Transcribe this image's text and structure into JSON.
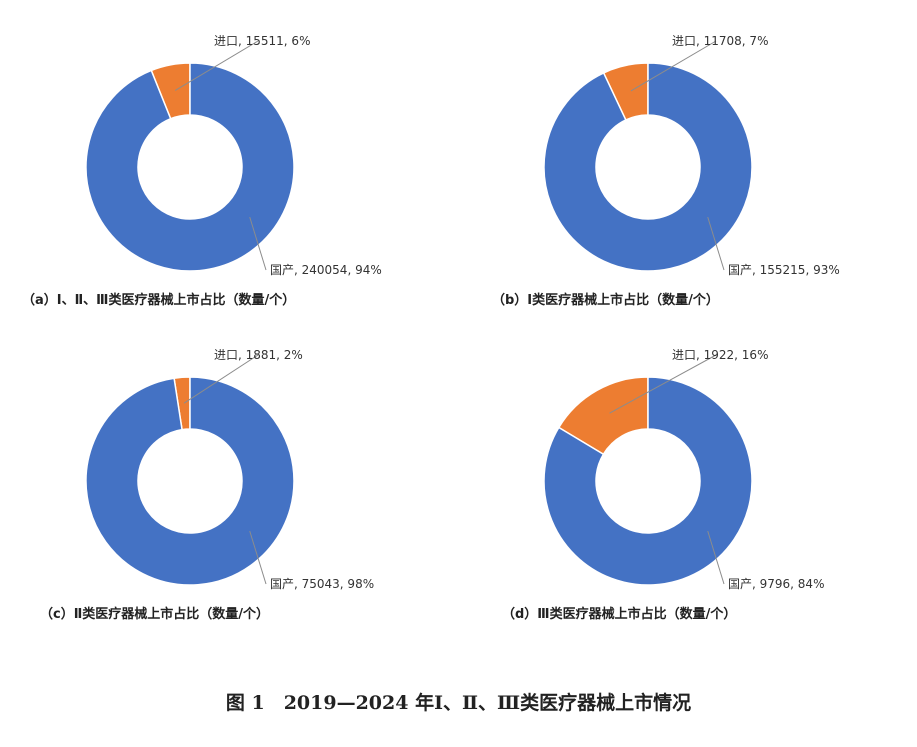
{
  "colors": {
    "domestic": "#4472c4",
    "imported": "#ed7d31",
    "leader": "#8c8c8c"
  },
  "figure_title": "图 1　2019—2024 年Ⅰ、Ⅱ、Ⅲ类医疗器械上市情况",
  "chart_data": [
    {
      "type": "pie",
      "variant": "donut",
      "title": "（a）Ⅰ、Ⅱ、Ⅲ类医疗器械上市占比（数量/个）",
      "slices": [
        {
          "name": "进口",
          "value": 15511,
          "percent": 6,
          "label": "进口, 15511, 6%"
        },
        {
          "name": "国产",
          "value": 240054,
          "percent": 94,
          "label": "国产, 240054, 94%"
        }
      ]
    },
    {
      "type": "pie",
      "variant": "donut",
      "title": "（b）Ⅰ类医疗器械上市占比（数量/个）",
      "slices": [
        {
          "name": "进口",
          "value": 11708,
          "percent": 7,
          "label": "进口, 11708, 7%"
        },
        {
          "name": "国产",
          "value": 155215,
          "percent": 93,
          "label": "国产, 155215, 93%"
        }
      ]
    },
    {
      "type": "pie",
      "variant": "donut",
      "title": "（c）Ⅱ类医疗器械上市占比（数量/个）",
      "slices": [
        {
          "name": "进口",
          "value": 1881,
          "percent": 2,
          "label": "进口, 1881, 2%"
        },
        {
          "name": "国产",
          "value": 75043,
          "percent": 98,
          "label": "国产, 75043, 98%"
        }
      ]
    },
    {
      "type": "pie",
      "variant": "donut",
      "title": "（d）Ⅲ类医疗器械上市占比（数量/个）",
      "slices": [
        {
          "name": "进口",
          "value": 1922,
          "percent": 16,
          "label": "进口, 1922, 16%"
        },
        {
          "name": "国产",
          "value": 9796,
          "percent": 84,
          "label": "国产, 9796, 84%"
        }
      ]
    }
  ]
}
